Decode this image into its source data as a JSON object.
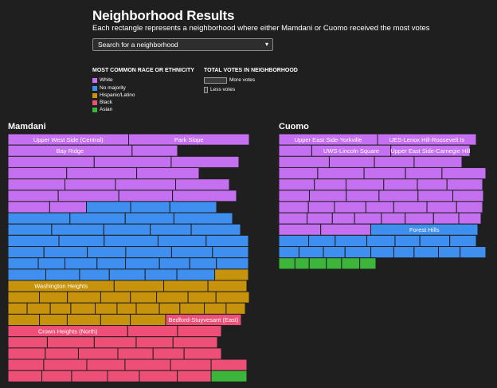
{
  "header": {
    "title": "Neighborhood Results",
    "subtitle": "Each rectangle represents a neighborhood where either Mamdani or Cuomo received the most votes"
  },
  "search": {
    "placeholder": "Search for a neighborhood",
    "chevron_icon": "chevron-down-icon"
  },
  "legend": {
    "race_heading": "MOST COMMON RACE OR ETHNICITY",
    "items": [
      {
        "label": "White",
        "color": "#c470f0"
      },
      {
        "label": "No majority",
        "color": "#3f8ff0"
      },
      {
        "label": "Hispanic/Latino",
        "color": "#c8930c"
      },
      {
        "label": "Black",
        "color": "#ee4f77"
      },
      {
        "label": "Asian",
        "color": "#3cb53a"
      }
    ],
    "votes_heading": "TOTAL VOTES IN NEIGHBORHOOD",
    "more_label": "More votes",
    "less_label": "Less votes"
  },
  "chart_data": {
    "type": "treemap",
    "groups": [
      {
        "name": "Mamdani",
        "rows": [
          {
            "category": "White",
            "count": 2,
            "labels": [
              "Upper West Side (Central)",
              "Park Slope"
            ]
          },
          {
            "category": "White",
            "count": 2,
            "labels": [
              "Bay Ridge",
              ""
            ]
          },
          {
            "category": "White",
            "count": 3,
            "labels": []
          },
          {
            "category": "White",
            "count": 3,
            "labels": []
          },
          {
            "category": "White",
            "count": 4,
            "labels": []
          },
          {
            "category": "White",
            "count": 4,
            "labels": []
          },
          {
            "category": "White",
            "count": 2,
            "labels": [],
            "continue": "No majority",
            "continue_count": 3
          },
          {
            "category": "No majority",
            "count": 4,
            "labels": []
          },
          {
            "category": "No majority",
            "count": 5,
            "labels": []
          },
          {
            "category": "No majority",
            "count": 5,
            "labels": []
          },
          {
            "category": "No majority",
            "count": 6,
            "labels": []
          },
          {
            "category": "No majority",
            "count": 8,
            "labels": []
          },
          {
            "category": "No majority",
            "count": 6,
            "labels": [],
            "continue": "Hispanic/Latino",
            "continue_count": 1
          },
          {
            "category": "Hispanic/Latino",
            "count": 4,
            "labels": [
              "Washington Heights"
            ]
          },
          {
            "category": "Hispanic/Latino",
            "count": 8,
            "labels": []
          },
          {
            "category": "Hispanic/Latino",
            "count": 11,
            "labels": []
          },
          {
            "category": "Hispanic/Latino",
            "count": 5,
            "labels": [],
            "continue": "Black",
            "continue_count": 1,
            "continue_labels": [
              "Bedford-Stuyvesant (East)"
            ]
          },
          {
            "category": "Black",
            "count": 3,
            "labels": [
              "Crown Heights (North)"
            ]
          },
          {
            "category": "Black",
            "count": 5,
            "labels": []
          },
          {
            "category": "Black",
            "count": 6,
            "labels": []
          },
          {
            "category": "Black",
            "count": 6,
            "labels": []
          },
          {
            "category": "Black",
            "count": 6,
            "labels": [],
            "continue": "Asian",
            "continue_count": 1
          }
        ]
      },
      {
        "name": "Cuomo",
        "rows": [
          {
            "category": "White",
            "count": 2,
            "labels": [
              "Upper East Side-Yorkville",
              "UES-Lenox Hill-Roosevelt Is"
            ]
          },
          {
            "category": "White",
            "count": 3,
            "labels": [
              "",
              "UWS-Lincoln Square",
              "Upper East Side-Carnegie Hill"
            ]
          },
          {
            "category": "White",
            "count": 4,
            "labels": []
          },
          {
            "category": "White",
            "count": 5,
            "labels": []
          },
          {
            "category": "White",
            "count": 6,
            "labels": []
          },
          {
            "category": "White",
            "count": 6,
            "labels": []
          },
          {
            "category": "White",
            "count": 7,
            "labels": []
          },
          {
            "category": "White",
            "count": 8,
            "labels": []
          },
          {
            "category": "White",
            "count": 2,
            "labels": [],
            "continue": "No majority",
            "continue_count": 1,
            "continue_labels": [
              "Forest Hills"
            ]
          },
          {
            "category": "No majority",
            "count": 7,
            "labels": []
          },
          {
            "category": "No majority",
            "count": 9,
            "labels": []
          },
          {
            "category": "Asian",
            "count": 6,
            "labels": []
          }
        ]
      }
    ]
  }
}
